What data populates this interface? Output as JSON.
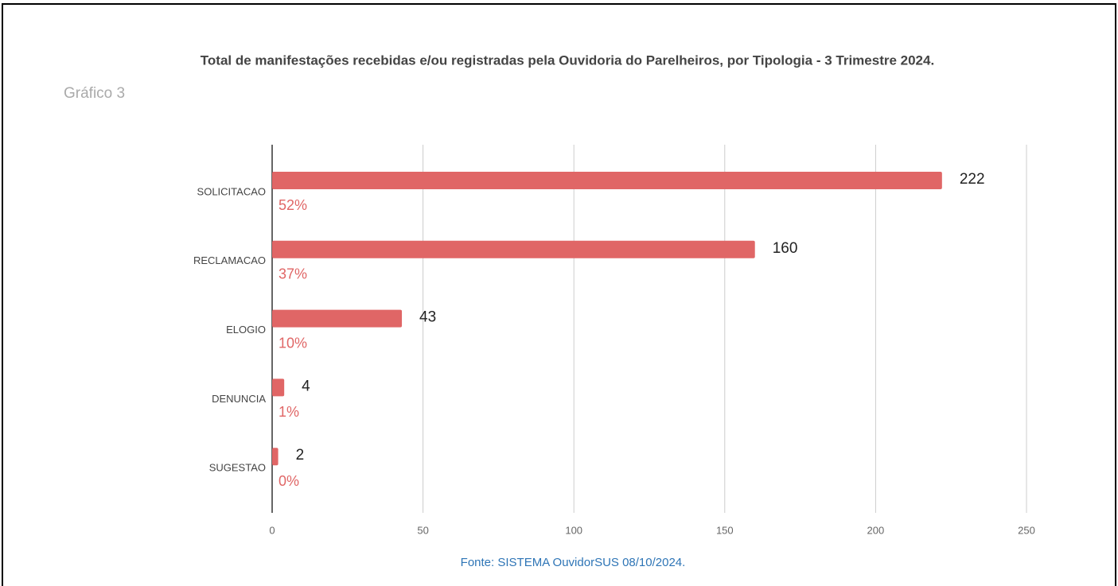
{
  "chart_data": {
    "type": "bar",
    "orientation": "horizontal",
    "title": "Total de manifestações recebidas e/ou registradas pela Ouvidoria do Parelheiros, por Tipologia - 3 Trimestre 2024.",
    "subtitle": "Gráfico 3",
    "source": "Fonte: SISTEMA OuvidorSUS 08/10/2024.",
    "categories": [
      "SOLICITACAO",
      "RECLAMACAO",
      "ELOGIO",
      "DENUNCIA",
      "SUGESTAO"
    ],
    "values": [
      222,
      160,
      43,
      4,
      2
    ],
    "percent_labels": [
      "52%",
      "37%",
      "10%",
      "1%",
      "0%"
    ],
    "color": "#e06666",
    "xlim": [
      0,
      250
    ],
    "xticks": [
      0,
      50,
      100,
      150,
      200,
      250
    ],
    "grid": true
  }
}
